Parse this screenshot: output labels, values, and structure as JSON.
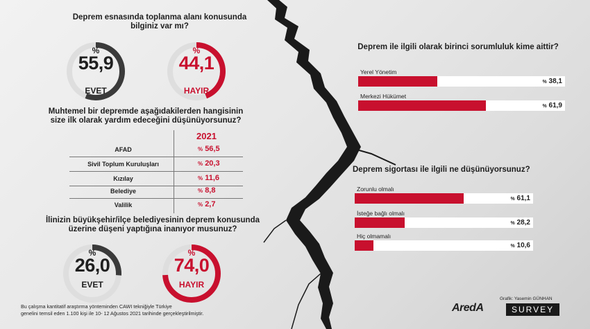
{
  "colors": {
    "red": "#c8102e",
    "dark": "#3a3a3a",
    "track": "#dedede",
    "bar_bg": "#ffffff"
  },
  "chart_data": [
    {
      "type": "pie",
      "title": "Deprem esnasında toplanma alanı konusunda bilginiz var mı?",
      "categories": [
        "EVET",
        "HAYIR"
      ],
      "values": [
        55.9,
        44.1
      ],
      "display": [
        "55,9",
        "44,1"
      ],
      "unit": "%"
    },
    {
      "type": "table",
      "title": "Muhtemel bir depremde aşağıdakilerden hangisinin size ilk olarak yardım edeceğini düşünüyorsunuz?",
      "column_header": "2021",
      "categories": [
        "AFAD",
        "Sivil Toplum Kuruluşları",
        "Kızılay",
        "Belediye",
        "Valilik"
      ],
      "values": [
        56.5,
        20.3,
        11.6,
        8.8,
        2.7
      ],
      "display": [
        "56,5",
        "20,3",
        "11,6",
        "8,8",
        "2,7"
      ],
      "unit": "%"
    },
    {
      "type": "pie",
      "title": "İlinizin büyükşehir/ilçe belediyesinin deprem konusunda üzerine düşeni yaptığına inanıyor musunuz?",
      "categories": [
        "EVET",
        "HAYIR"
      ],
      "values": [
        26.0,
        74.0
      ],
      "display": [
        "26,0",
        "74,0"
      ],
      "unit": "%"
    },
    {
      "type": "bar",
      "title": "Deprem ile ilgili olarak birinci sorumluluk kime aittir?",
      "categories": [
        "Yerel Yönetim",
        "Merkezi Hükümet"
      ],
      "values": [
        38.1,
        61.9
      ],
      "display": [
        "38,1",
        "61,9"
      ],
      "unit": "%",
      "xlim": [
        0,
        100
      ]
    },
    {
      "type": "bar",
      "title": "Deprem sigortası ile ilgili ne düşünüyorsunuz?",
      "categories": [
        "Zorunlu olmalı",
        "İsteğe bağlı olmalı",
        "Hiç olmamalı"
      ],
      "values": [
        61.1,
        28.2,
        10.6
      ],
      "display": [
        "61,1",
        "28,2",
        "10,6"
      ],
      "unit": "%",
      "xlim": [
        0,
        100
      ]
    }
  ],
  "credit": "Grafik: Yasemin GÜNHAN",
  "footnote": [
    "Bu çalışma kantitatif araştırma yönteminden CAWI tekniğiyle Türkiye",
    "genelini temsil eden 1.100 kişi ile 10- 12 Ağustos 2021 tarihinde gerçekleştirilmiştir."
  ],
  "logo": {
    "brand": "AredA",
    "suffix": "SURVEY"
  }
}
